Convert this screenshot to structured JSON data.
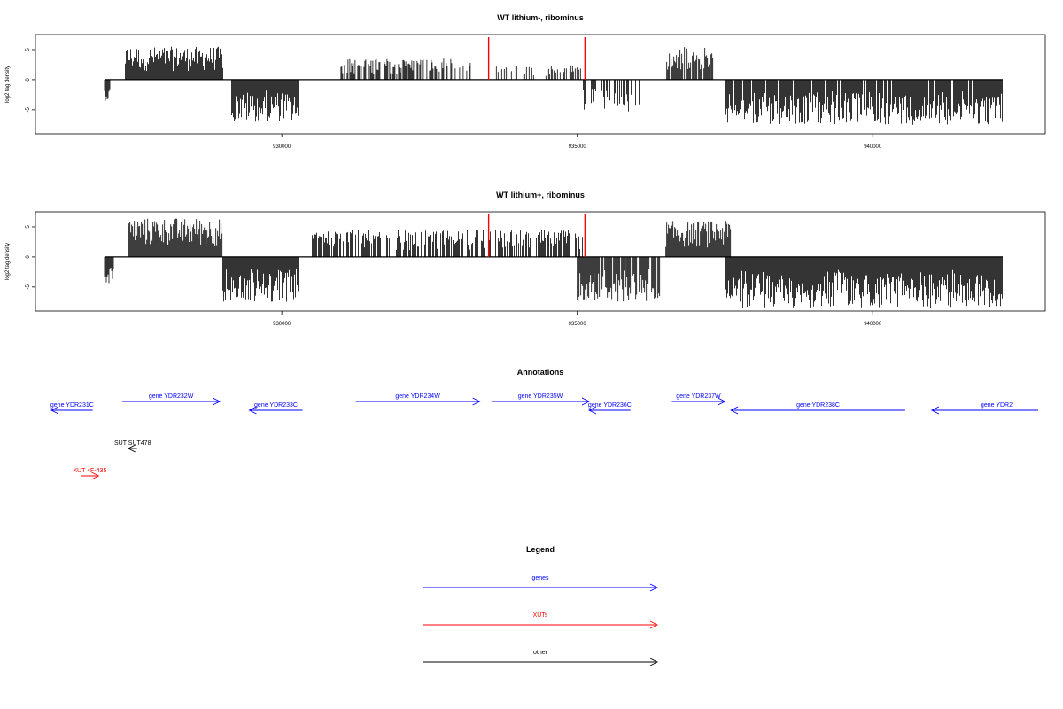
{
  "chart_data": [
    {
      "type": "bar",
      "title": "WT lithium-, ribominus",
      "ylabel": "log2 tag density",
      "xlim": [
        926100,
        942800
      ],
      "ylim": [
        -9,
        7.5
      ],
      "xticks": [
        930000,
        935000,
        940000
      ],
      "xtick_labels": [
        "930000",
        "935000",
        "940000"
      ],
      "yticks": [
        5,
        0,
        -5
      ],
      "ytick_labels": [
        "5",
        "0",
        "-5"
      ],
      "grid": false,
      "color": "#000000",
      "highlight_color": "#ff0000",
      "highlights": [
        933500,
        935130
      ],
      "regions": [
        {
          "start": 927000,
          "end": 927100,
          "sign": -1,
          "peak": 3.5,
          "density": 1.0
        },
        {
          "start": 927350,
          "end": 929000,
          "sign": 1,
          "peak": 5.5,
          "density": 1.0
        },
        {
          "start": 929150,
          "end": 930300,
          "sign": -1,
          "peak": 7,
          "density": 1.0
        },
        {
          "start": 931000,
          "end": 933200,
          "sign": 1,
          "peak": 3.5,
          "density": 0.6
        },
        {
          "start": 933600,
          "end": 935100,
          "sign": 1,
          "peak": 2.5,
          "density": 0.35
        },
        {
          "start": 935100,
          "end": 936100,
          "sign": -1,
          "peak": 5.5,
          "density": 0.4
        },
        {
          "start": 936500,
          "end": 937300,
          "sign": 1,
          "peak": 5.5,
          "density": 0.9
        },
        {
          "start": 937500,
          "end": 942200,
          "sign": -1,
          "peak": 7.5,
          "density": 0.9
        }
      ]
    },
    {
      "type": "bar",
      "title": "WT lithium+, ribominus",
      "ylabel": "log2 tag density",
      "xlim": [
        926100,
        942800
      ],
      "ylim": [
        -9,
        7.5
      ],
      "xticks": [
        930000,
        935000,
        940000
      ],
      "xtick_labels": [
        "930000",
        "935000",
        "940000"
      ],
      "yticks": [
        5,
        0,
        -5
      ],
      "ytick_labels": [
        "5",
        "0",
        "-5"
      ],
      "grid": false,
      "color": "#000000",
      "highlight_color": "#ff0000",
      "highlights": [
        933500,
        935130
      ],
      "regions": [
        {
          "start": 927000,
          "end": 927150,
          "sign": -1,
          "peak": 4.5,
          "density": 1.0
        },
        {
          "start": 927400,
          "end": 929000,
          "sign": 1,
          "peak": 6.5,
          "density": 1.0
        },
        {
          "start": 929000,
          "end": 930300,
          "sign": -1,
          "peak": 7.5,
          "density": 1.0
        },
        {
          "start": 930500,
          "end": 935100,
          "sign": 1,
          "peak": 4.5,
          "density": 0.6
        },
        {
          "start": 935000,
          "end": 936400,
          "sign": -1,
          "peak": 7.5,
          "density": 0.9
        },
        {
          "start": 936500,
          "end": 937600,
          "sign": 1,
          "peak": 6.0,
          "density": 1.0
        },
        {
          "start": 937500,
          "end": 942200,
          "sign": -1,
          "peak": 8.5,
          "density": 1.0
        }
      ]
    }
  ],
  "annotations": {
    "title": "Annotations",
    "xlim": [
      926100,
      942800
    ],
    "features": [
      {
        "label": "gene YDR231C",
        "start": 926100,
        "end": 926800,
        "strand": "-",
        "row": 1,
        "color": "#0000ff"
      },
      {
        "label": "gene YDR232W",
        "start": 927300,
        "end": 928950,
        "strand": "+",
        "row": 0,
        "color": "#0000ff"
      },
      {
        "label": "gene YDR233C",
        "start": 929450,
        "end": 930350,
        "strand": "-",
        "row": 1,
        "color": "#0000ff"
      },
      {
        "label": "gene YDR234W",
        "start": 931250,
        "end": 933350,
        "strand": "+",
        "row": 0,
        "color": "#0000ff"
      },
      {
        "label": "gene YDR235W",
        "start": 933550,
        "end": 935200,
        "strand": "+",
        "row": 0,
        "color": "#0000ff"
      },
      {
        "label": "gene YDR236C",
        "start": 935200,
        "end": 935900,
        "strand": "-",
        "row": 1,
        "color": "#0000ff"
      },
      {
        "label": "gene YDR237W",
        "start": 936600,
        "end": 937500,
        "strand": "+",
        "row": 0,
        "color": "#0000ff"
      },
      {
        "label": "gene YDR238C",
        "start": 937600,
        "end": 940550,
        "strand": "-",
        "row": 1,
        "color": "#0000ff"
      },
      {
        "label": "gene YDR2",
        "start": 941000,
        "end": 942800,
        "strand": "-",
        "row": 1,
        "color": "#0000ff"
      },
      {
        "label": "SUT SUT478",
        "start": 927400,
        "end": 927550,
        "strand": "-",
        "row": 2,
        "color": "#000000"
      },
      {
        "label": "XUT 4F-435",
        "start": 926600,
        "end": 926900,
        "strand": "+",
        "row": 3,
        "color": "#ff0000"
      }
    ]
  },
  "legend": {
    "title": "Legend",
    "items": [
      {
        "label": "genes",
        "color": "#0000ff"
      },
      {
        "label": "XUTs",
        "color": "#ff0000"
      },
      {
        "label": "other",
        "color": "#000000"
      }
    ]
  }
}
